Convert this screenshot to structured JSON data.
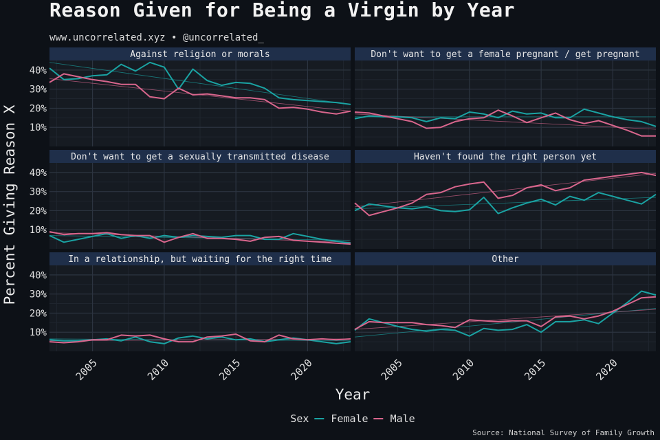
{
  "title": "Reason Given for Being a Virgin by Year",
  "subtitle": "www.uncorrelated.xyz • @uncorrelated_",
  "caption": "Source: National Survey of Family Growth",
  "colors": {
    "background": "#0d1117",
    "panel": "#161b22",
    "strip": "#1f2f4a",
    "female": "#1aa3a3",
    "male": "#d9668d"
  },
  "chart_data": {
    "type": "line",
    "xlabel": "Year",
    "ylabel": "Percent Giving Reason X",
    "x_ticks": [
      2005,
      2010,
      2015,
      2020
    ],
    "y_ticks": [
      10,
      20,
      30,
      40
    ],
    "y_tick_labels": [
      "10%",
      "20%",
      "30%",
      "40%"
    ],
    "xlim": [
      2002,
      2023
    ],
    "ylim": [
      0,
      45
    ],
    "legend_title": "Sex",
    "legend_position": "bottom",
    "series_names": [
      "Female",
      "Male"
    ],
    "years": [
      2002,
      2003,
      2004,
      2005,
      2006,
      2007,
      2008,
      2009,
      2010,
      2011,
      2012,
      2013,
      2014,
      2015,
      2016,
      2017,
      2018,
      2019,
      2020,
      2021,
      2022,
      2023
    ],
    "panels": [
      {
        "label": "Against religion or morals",
        "female": [
          41,
          35,
          35.5,
          37,
          37.5,
          43,
          39.5,
          44,
          41.5,
          30,
          40.5,
          34.5,
          32,
          33.5,
          33,
          30.5,
          25.5,
          24.5,
          24,
          23.5,
          23,
          22
        ],
        "male": [
          33.5,
          38,
          36.5,
          35,
          34,
          32.5,
          32.5,
          26,
          25,
          30.5,
          27,
          27.5,
          26.5,
          25.5,
          25.5,
          24.5,
          20,
          20.5,
          19.5,
          18,
          17,
          18.5
        ],
        "female_trend": [
          44,
          22
        ],
        "male_trend": [
          35.5,
          18.5
        ]
      },
      {
        "label": "Don't want to get a female pregnant / get pregnant",
        "female": [
          14.5,
          16,
          15.5,
          15.5,
          15,
          13,
          15,
          14.5,
          18,
          17,
          15,
          18.5,
          17,
          17.5,
          15,
          15,
          19.5,
          17.5,
          15.5,
          14,
          13,
          10.5
        ],
        "male": [
          18,
          17.5,
          16,
          14.5,
          13,
          9.5,
          10,
          13,
          14.5,
          15,
          19,
          16,
          12.5,
          15,
          17.5,
          14,
          12,
          13.5,
          11,
          8.5,
          5.5,
          5.5
        ],
        "female_trend": [
          15.5,
          15.5
        ],
        "male_trend": [
          17,
          9
        ]
      },
      {
        "label": "Don't want to get a sexually transmitted disease",
        "female": [
          7,
          3.5,
          5,
          6.5,
          8,
          5.5,
          7,
          5.5,
          7,
          6,
          7,
          6.5,
          6,
          7,
          7,
          5,
          5,
          8,
          6.5,
          5,
          4,
          3
        ],
        "male": [
          9,
          7.5,
          8,
          8,
          8.5,
          7.5,
          7,
          7,
          3.5,
          6,
          8,
          5.5,
          5.5,
          5,
          4,
          6,
          6.5,
          4.5,
          4,
          3.5,
          3,
          2.5
        ],
        "female_trend": [
          7,
          4.5
        ],
        "male_trend": [
          8.5,
          3.5
        ]
      },
      {
        "label": "Haven't found the right person yet",
        "female": [
          20,
          23.5,
          22.5,
          21.5,
          21,
          22,
          20,
          19.5,
          20.5,
          27,
          18.5,
          21.5,
          24,
          26,
          23,
          27.5,
          25.5,
          29.5,
          27.5,
          25.5,
          23.5,
          28.5
        ],
        "male": [
          24,
          17.5,
          19.5,
          21.5,
          24,
          28.5,
          29.5,
          32.5,
          34,
          35,
          26.5,
          28,
          32,
          33.5,
          30.5,
          32,
          36,
          37,
          38,
          39,
          40,
          38.5
        ],
        "female_trend": [
          21,
          27
        ],
        "male_trend": [
          22,
          39.5
        ]
      },
      {
        "label": "In a relationship, but waiting for the right time",
        "female": [
          6,
          5.5,
          5.5,
          6,
          6.5,
          5.5,
          7.5,
          5,
          4,
          7,
          8,
          6.5,
          7.5,
          6,
          6.5,
          5,
          6,
          7,
          6,
          5,
          4,
          5
        ],
        "male": [
          5,
          4.5,
          5,
          6,
          6,
          8.5,
          8,
          8.5,
          6.5,
          5,
          5,
          7.5,
          8,
          9,
          5.5,
          5,
          8.5,
          6.5,
          6,
          6.5,
          6,
          6.5
        ],
        "female_trend": [
          6.5,
          5.5
        ],
        "male_trend": [
          5.5,
          6.5
        ]
      },
      {
        "label": "Other",
        "female": [
          11,
          17,
          15,
          13,
          11.5,
          10.5,
          11.5,
          11,
          8,
          12,
          11,
          11.5,
          14,
          10,
          15.5,
          15.5,
          16.5,
          14.5,
          20,
          25.5,
          31.5,
          29.5
        ],
        "male": [
          11.5,
          15.5,
          15,
          15,
          15,
          14,
          13.5,
          12.5,
          16.5,
          16,
          15.5,
          16,
          16,
          13,
          18,
          18.5,
          17,
          18.5,
          21,
          24.5,
          28,
          28.5
        ],
        "female_trend": [
          7.5,
          22.5
        ],
        "male_trend": [
          11.5,
          22
        ]
      }
    ]
  }
}
